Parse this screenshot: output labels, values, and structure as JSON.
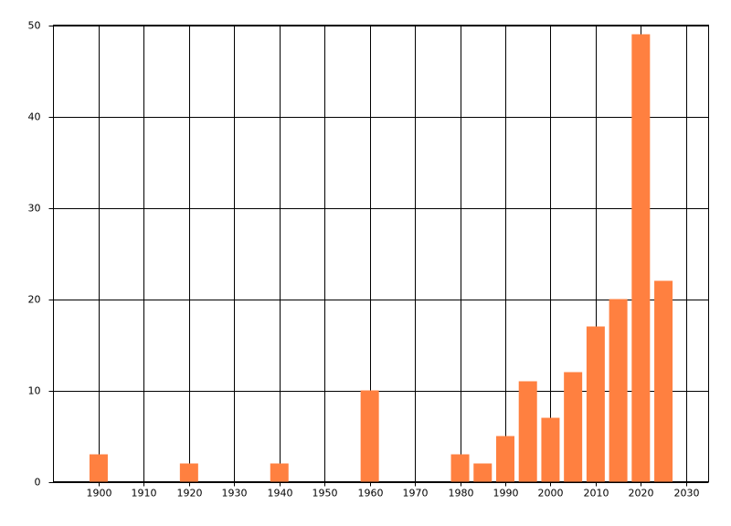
{
  "chart_data": {
    "type": "bar",
    "x": [
      1900,
      1920,
      1940,
      1960,
      1980,
      1985,
      1990,
      1995,
      2000,
      2005,
      2010,
      2015,
      2020,
      2025
    ],
    "values": [
      3,
      2,
      2,
      10,
      3,
      2,
      5,
      11,
      7,
      12,
      17,
      20,
      49,
      22
    ],
    "color": "#ff8040",
    "xlim": [
      1890,
      2035
    ],
    "xticks": [
      1900,
      1910,
      1920,
      1930,
      1940,
      1950,
      1960,
      1970,
      1980,
      1990,
      2000,
      2010,
      2020,
      2030
    ],
    "ylim": [
      0,
      50
    ],
    "yticks": [
      0,
      10,
      20,
      30,
      40,
      50
    ],
    "grid": true
  }
}
